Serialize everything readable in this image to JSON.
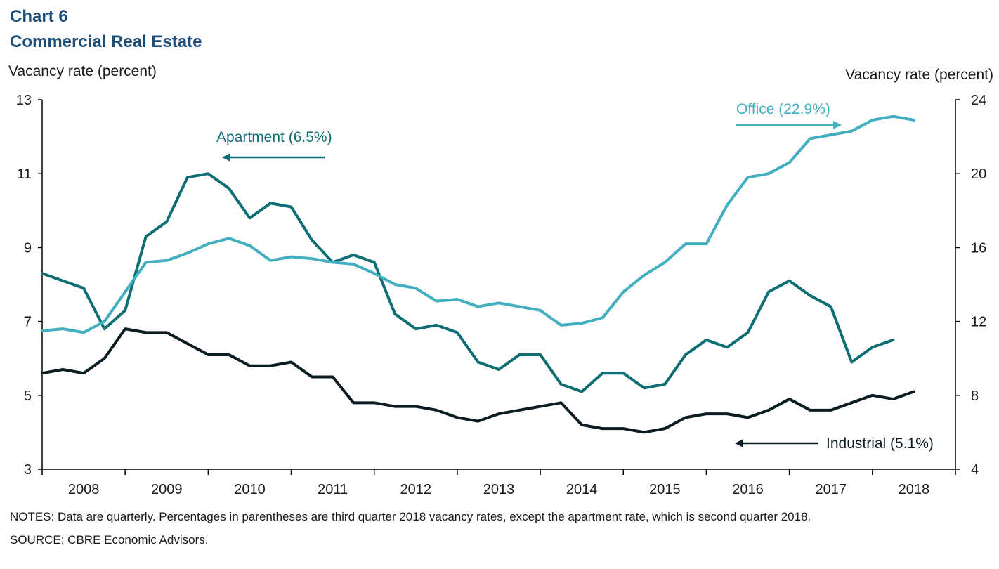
{
  "header": {
    "chart_number": "Chart 6",
    "title": "Commercial Real Estate"
  },
  "colors": {
    "office": "#41afbf",
    "apartment": "#0e6e74",
    "industrial": "#0b1c22",
    "title": "#1f4e79"
  },
  "notes": {
    "notes": "NOTES: Data are quarterly. Percentages in parentheses are third quarter 2018 vacancy rates, except the apartment rate, which is second quarter 2018.",
    "source": "SOURCE: CBRE Economic Advisors."
  },
  "chart_data": {
    "type": "line",
    "title": "Commercial Real Estate",
    "ylabel_left": "Vacancy rate (percent)",
    "ylabel_right": "Vacancy rate (percent)",
    "ylim_left": [
      3,
      13
    ],
    "ylim_right": [
      4,
      24
    ],
    "yticks_left": [
      3,
      5,
      7,
      9,
      11,
      13
    ],
    "yticks_right": [
      4,
      8,
      12,
      16,
      20,
      24
    ],
    "x_start": "2007 Q4",
    "x_tick_labels": [
      "2008",
      "2009",
      "2010",
      "2011",
      "2012",
      "2013",
      "2014",
      "2015",
      "2016",
      "2017",
      "2018"
    ],
    "grid": false,
    "series": [
      {
        "name": "Apartment (6.5%)",
        "axis": "left",
        "arrow": "left",
        "values": [
          8.3,
          8.1,
          7.9,
          6.8,
          7.3,
          9.3,
          9.7,
          10.9,
          11.0,
          10.6,
          9.8,
          10.2,
          10.1,
          9.2,
          8.6,
          8.8,
          8.6,
          7.2,
          6.8,
          6.9,
          6.7,
          5.9,
          5.7,
          6.1,
          6.1,
          5.3,
          5.1,
          5.6,
          5.6,
          5.2,
          5.3,
          6.1,
          6.5,
          6.3,
          6.7,
          7.8,
          8.1,
          7.7,
          7.4,
          5.9,
          6.3,
          6.5
        ]
      },
      {
        "name": "Office (22.9%)",
        "axis": "right",
        "arrow": "right",
        "values": [
          11.5,
          11.6,
          11.4,
          12.0,
          13.6,
          15.2,
          15.3,
          15.7,
          16.2,
          16.5,
          16.1,
          15.3,
          15.5,
          15.4,
          15.2,
          15.1,
          14.6,
          14.0,
          13.8,
          13.1,
          13.2,
          12.8,
          13.0,
          12.8,
          12.6,
          11.8,
          11.9,
          12.2,
          13.6,
          14.5,
          15.2,
          16.2,
          16.2,
          18.3,
          19.8,
          20.0,
          20.6,
          21.9,
          22.1,
          22.3,
          22.9,
          23.1,
          22.9
        ]
      },
      {
        "name": "Industrial (5.1%)",
        "axis": "left",
        "arrow": "left",
        "values": [
          5.6,
          5.7,
          5.6,
          6.0,
          6.8,
          6.7,
          6.7,
          6.4,
          6.1,
          6.1,
          5.8,
          5.8,
          5.9,
          5.5,
          5.5,
          4.8,
          4.8,
          4.7,
          4.7,
          4.6,
          4.4,
          4.3,
          4.5,
          4.6,
          4.7,
          4.8,
          4.2,
          4.1,
          4.1,
          4.0,
          4.1,
          4.4,
          4.5,
          4.5,
          4.4,
          4.6,
          4.9,
          4.6,
          4.6,
          4.8,
          5.0,
          4.9,
          5.1
        ]
      }
    ]
  }
}
